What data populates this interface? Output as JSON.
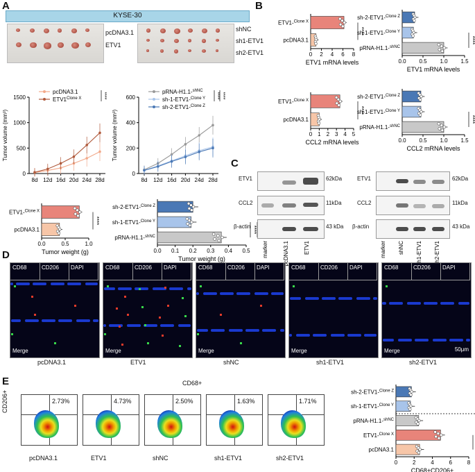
{
  "panels": {
    "A": "A",
    "B": "B",
    "C": "C",
    "D": "D",
    "E": "E"
  },
  "panelA": {
    "banner": "KYSE-30",
    "photo1_labels": [
      "pcDNA3.1",
      "ETV1"
    ],
    "photo2_labels": [
      "shNC",
      "sh1-ETV1",
      "sh2-ETV1"
    ]
  },
  "colors": {
    "oe": "#e8847a",
    "ctrl_oe": "#f7c6a8",
    "sh2": "#4a78b5",
    "sh1": "#a8c4ea",
    "shnc": "#c8c8c8"
  },
  "panelC": {
    "row_labels": [
      "ETV1",
      "CCL2",
      "β-actin"
    ],
    "kda_labels": [
      "62kDa",
      "11kDa",
      "43 kDa"
    ],
    "lanes1": [
      "marker",
      "pcDNA3.1",
      "ETV1"
    ],
    "lanes2": [
      "marker",
      "shNC",
      "sh1-ETV1",
      "sh2-ETV1"
    ]
  },
  "panelD": {
    "channels": [
      "CD68",
      "CD206",
      "DAPI"
    ],
    "merge": "Merge",
    "groups": [
      "pcDNA3.1",
      "ETV1",
      "shNC",
      "sh1-ETV1",
      "sh2-ETV1"
    ],
    "scale": "50μm"
  },
  "panelE": {
    "title": "CD68+",
    "ylabel": "CD206+",
    "groups": [
      "pcDNA3.1",
      "ETV1",
      "shNC",
      "sh1-ETV1",
      "sh2-ETV1"
    ],
    "percents": [
      "2.73%",
      "4.73%",
      "2.50%",
      "1.63%",
      "1.71%"
    ]
  },
  "chart_data": [
    {
      "id": "A-growth-oe",
      "type": "line",
      "ylabel": "Tumor volume (mm³)",
      "xlabel": "",
      "x": [
        "8d",
        "12d",
        "16d",
        "20d",
        "24d",
        "28d"
      ],
      "ylim": [
        0,
        1500
      ],
      "yticks": [
        0,
        500,
        1000,
        1500
      ],
      "series": [
        {
          "name": "pcDNA3.1",
          "values": [
            20,
            60,
            110,
            200,
            300,
            430
          ]
        },
        {
          "name": "ETV1",
          "sup": "Clone X",
          "values": [
            25,
            90,
            200,
            330,
            560,
            800
          ]
        }
      ],
      "sig": "****"
    },
    {
      "id": "A-growth-sh",
      "type": "line",
      "ylabel": "Tumor volume (mm³)",
      "xlabel": "",
      "x": [
        "8d",
        "12d",
        "16d",
        "20d",
        "24d",
        "28d"
      ],
      "ylim": [
        0,
        600
      ],
      "yticks": [
        0,
        200,
        400,
        600
      ],
      "series": [
        {
          "name": "pRNA-H1.1-",
          "sup": "shNC",
          "values": [
            30,
            80,
            150,
            230,
            300,
            380
          ]
        },
        {
          "name": "sh-1-ETV1-",
          "sup": "Clone Y",
          "values": [
            25,
            60,
            100,
            140,
            180,
            210
          ]
        },
        {
          "name": "sh-2-ETV1-",
          "sup": "Clone Z",
          "values": [
            25,
            55,
            95,
            130,
            170,
            200
          ]
        }
      ],
      "sig": [
        "****",
        "****"
      ]
    },
    {
      "id": "A-weight-oe",
      "type": "bar",
      "xlabel": "Tumor weight (g)",
      "xlim": [
        0,
        1.0
      ],
      "xticks": [
        "0.0",
        "0.5",
        "1.0"
      ],
      "categories": [
        {
          "name": "ETV1-",
          "sup": "Clone X"
        },
        {
          "name": "pcDNA3.1",
          "sup": ""
        }
      ],
      "values": [
        0.8,
        0.38
      ],
      "sig": "****"
    },
    {
      "id": "A-weight-sh",
      "type": "bar",
      "xlabel": "Tumor weight (g)",
      "xlim": [
        0,
        0.5
      ],
      "xticks": [
        "0.0",
        "0.1",
        "0.2",
        "0.3",
        "0.4",
        "0.5"
      ],
      "categories": [
        {
          "name": "sh-2-ETV1-",
          "sup": "Clone Z"
        },
        {
          "name": "sh-1-ETV1-",
          "sup": "Clone Y"
        },
        {
          "name": "pRNA-H1.1-",
          "sup": "shNC"
        }
      ],
      "values": [
        0.2,
        0.19,
        0.36
      ],
      "sig": [
        "****",
        "****"
      ]
    },
    {
      "id": "B-etv1-oe",
      "type": "bar",
      "xlabel": "ETV1 mRNA levels",
      "xlim": [
        0,
        8
      ],
      "xticks": [
        "0",
        "2",
        "4",
        "6",
        "8"
      ],
      "categories": [
        {
          "name": "ETV1-",
          "sup": "Clone X"
        },
        {
          "name": "pcDNA3.1",
          "sup": ""
        }
      ],
      "values": [
        6.2,
        1.0
      ],
      "sig": "****"
    },
    {
      "id": "B-etv1-sh",
      "type": "bar",
      "xlabel": "ETV1 mRNA levels",
      "xlim": [
        0,
        1.5
      ],
      "xticks": [
        "0.0",
        "0.5",
        "1.0",
        "1.5"
      ],
      "categories": [
        {
          "name": "sh-2-ETV1-",
          "sup": "Clone Z"
        },
        {
          "name": "sh-1-ETV1-",
          "sup": "Clone Y"
        },
        {
          "name": "pRNA-H1.1-",
          "sup": "shNC"
        }
      ],
      "values": [
        0.3,
        0.27,
        1.0
      ],
      "sig": [
        "****",
        "****"
      ]
    },
    {
      "id": "B-ccl2-oe",
      "type": "bar",
      "xlabel": "CCL2 mRNA levels",
      "xlim": [
        0,
        5
      ],
      "xticks": [
        "0",
        "1",
        "2",
        "3",
        "4",
        "5"
      ],
      "categories": [
        {
          "name": "ETV1-",
          "sup": "Clone X"
        },
        {
          "name": "pcDNA3.1",
          "sup": ""
        }
      ],
      "values": [
        3.4,
        1.0
      ],
      "sig": "****"
    },
    {
      "id": "B-ccl2-sh",
      "type": "bar",
      "xlabel": "CCL2 mRNA levels",
      "xlim": [
        0,
        1.5
      ],
      "xticks": [
        "0.0",
        "0.5",
        "1.0",
        "1.5"
      ],
      "categories": [
        {
          "name": "sh-2-ETV1-",
          "sup": "Clone Z"
        },
        {
          "name": "sh-1-ETV1-",
          "sup": "Clone Y"
        },
        {
          "name": "pRNA-H1.1-",
          "sup": "shNC"
        }
      ],
      "values": [
        0.45,
        0.45,
        1.0
      ],
      "sig": [
        "****",
        "****"
      ]
    },
    {
      "id": "E-bars",
      "type": "bar",
      "xlabel": "CD68+CD206+",
      "xlim": [
        0,
        8
      ],
      "xticks": [
        "0",
        "2",
        "4",
        "6",
        "8"
      ],
      "categories": [
        {
          "name": "sh-2-ETV1-",
          "sup": "Clone Z"
        },
        {
          "name": "sh-1-ETV1-",
          "sup": "Clone Y"
        },
        {
          "name": "pRNA-H1.1-",
          "sup": "shNC"
        },
        {
          "name": "ETV1-",
          "sup": "Clone X"
        },
        {
          "name": "pcDNA3.1",
          "sup": ""
        }
      ],
      "values": [
        1.7,
        1.6,
        2.5,
        4.9,
        2.6
      ],
      "sig": [
        "*",
        "*",
        "****"
      ]
    }
  ]
}
